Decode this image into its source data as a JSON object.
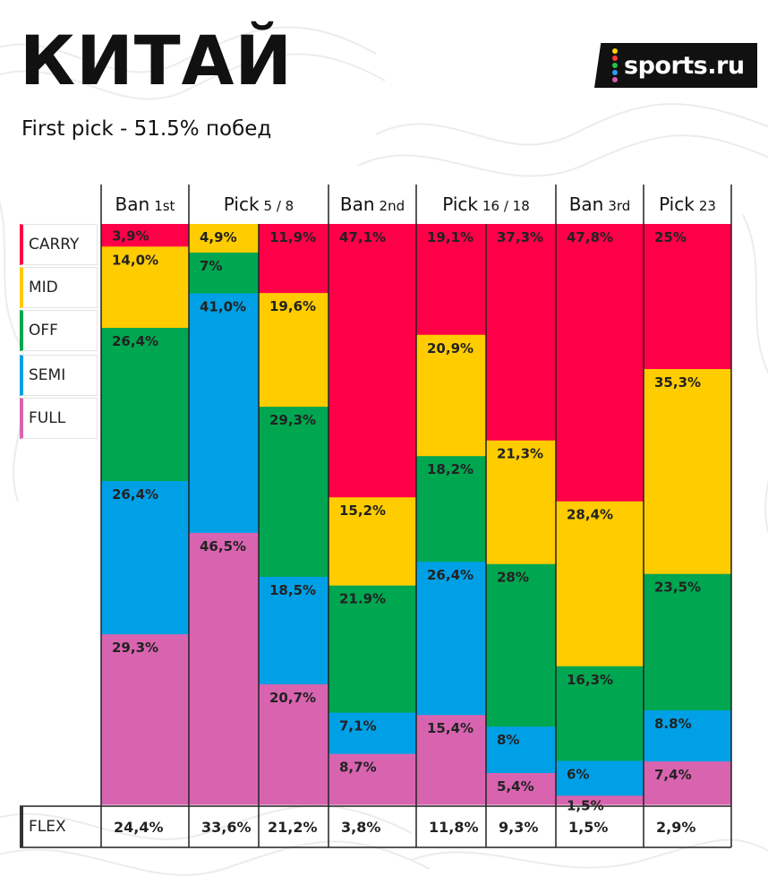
{
  "header": {
    "title": "КИТАЙ",
    "subtitle": "First pick - 51.5% побед",
    "logo_text": "sports.ru",
    "logo_dot_colors": [
      "#ffd000",
      "#ff3a3a",
      "#22c24b",
      "#2a9df4",
      "#d65ab0"
    ]
  },
  "colors": {
    "CARRY": "#ff0048",
    "MID": "#ffcc00",
    "OFF": "#00a650",
    "SEMI": "#00a0e6",
    "FULL": "#d864b0"
  },
  "chart_data": {
    "type": "bar",
    "stacked": true,
    "normalized": true,
    "column_groups": [
      {
        "main": "Ban",
        "sub": "1st"
      },
      {
        "main": "Pick",
        "sub": "5 / 8"
      },
      {
        "main": "Ban",
        "sub": "2nd"
      },
      {
        "main": "Pick",
        "sub": "16 / 18"
      },
      {
        "main": "Ban",
        "sub": "3rd"
      },
      {
        "main": "Pick",
        "sub": "23"
      }
    ],
    "categories": [
      "Ban 1st",
      "Pick 5",
      "Pick 8",
      "Ban 2nd",
      "Pick 16",
      "Pick 18",
      "Ban 3rd",
      "Pick 23"
    ],
    "series_order": [
      "CARRY",
      "MID",
      "OFF",
      "SEMI",
      "FULL"
    ],
    "columns": [
      {
        "segments": [
          {
            "role": "CARRY",
            "value": 3.9,
            "label": "3,9%"
          },
          {
            "role": "MID",
            "value": 14.0,
            "label": "14,0%"
          },
          {
            "role": "OFF",
            "value": 26.4,
            "label": "26,4%"
          },
          {
            "role": "SEMI",
            "value": 26.4,
            "label": "26,4%"
          },
          {
            "role": "FULL",
            "value": 29.3,
            "label": "29,3%"
          }
        ]
      },
      {
        "segments": [
          {
            "role": "MID",
            "value": 4.9,
            "label": "4,9%"
          },
          {
            "role": "OFF",
            "value": 7.0,
            "label": "7%"
          },
          {
            "role": "SEMI",
            "value": 41.0,
            "label": "41,0%"
          },
          {
            "role": "FULL",
            "value": 46.5,
            "label": "46,5%"
          }
        ]
      },
      {
        "segments": [
          {
            "role": "CARRY",
            "value": 11.9,
            "label": "11,9%"
          },
          {
            "role": "MID",
            "value": 19.6,
            "label": "19,6%"
          },
          {
            "role": "OFF",
            "value": 29.3,
            "label": "29,3%"
          },
          {
            "role": "SEMI",
            "value": 18.5,
            "label": "18,5%"
          },
          {
            "role": "FULL",
            "value": 20.7,
            "label": "20,7%"
          }
        ]
      },
      {
        "segments": [
          {
            "role": "CARRY",
            "value": 47.1,
            "label": "47,1%"
          },
          {
            "role": "MID",
            "value": 15.2,
            "label": "15,2%"
          },
          {
            "role": "OFF",
            "value": 21.9,
            "label": "21.9%"
          },
          {
            "role": "SEMI",
            "value": 7.1,
            "label": "7,1%"
          },
          {
            "role": "FULL",
            "value": 8.7,
            "label": "8,7%"
          }
        ]
      },
      {
        "segments": [
          {
            "role": "CARRY",
            "value": 19.1,
            "label": "19,1%"
          },
          {
            "role": "MID",
            "value": 20.9,
            "label": "20,9%"
          },
          {
            "role": "OFF",
            "value": 18.2,
            "label": "18,2%"
          },
          {
            "role": "SEMI",
            "value": 26.4,
            "label": "26,4%"
          },
          {
            "role": "FULL",
            "value": 15.4,
            "label": "15,4%"
          }
        ]
      },
      {
        "segments": [
          {
            "role": "CARRY",
            "value": 37.3,
            "label": "37,3%"
          },
          {
            "role": "MID",
            "value": 21.3,
            "label": "21,3%"
          },
          {
            "role": "OFF",
            "value": 28.0,
            "label": "28%"
          },
          {
            "role": "SEMI",
            "value": 8.0,
            "label": "8%"
          },
          {
            "role": "FULL",
            "value": 5.4,
            "label": "5,4%"
          }
        ]
      },
      {
        "segments": [
          {
            "role": "CARRY",
            "value": 47.8,
            "label": "47,8%"
          },
          {
            "role": "MID",
            "value": 28.4,
            "label": "28,4%"
          },
          {
            "role": "OFF",
            "value": 16.3,
            "label": "16,3%"
          },
          {
            "role": "SEMI",
            "value": 6.0,
            "label": "6%"
          },
          {
            "role": "FULL",
            "value": 1.5,
            "label": "1,5%"
          }
        ]
      },
      {
        "segments": [
          {
            "role": "CARRY",
            "value": 25.0,
            "label": "25%"
          },
          {
            "role": "MID",
            "value": 35.3,
            "label": "35,3%"
          },
          {
            "role": "OFF",
            "value": 23.5,
            "label": "23,5%"
          },
          {
            "role": "SEMI",
            "value": 8.8,
            "label": "8.8%"
          },
          {
            "role": "FULL",
            "value": 7.4,
            "label": "7,4%"
          }
        ]
      }
    ],
    "legend": [
      "CARRY",
      "MID",
      "OFF",
      "SEMI",
      "FULL"
    ],
    "flex": {
      "label": "FLEX",
      "values": [
        "24,4%",
        "33,6%",
        "21,2%",
        "3,8%",
        "11,8%",
        "9,3%",
        "1,5%",
        "2,9%"
      ]
    }
  }
}
